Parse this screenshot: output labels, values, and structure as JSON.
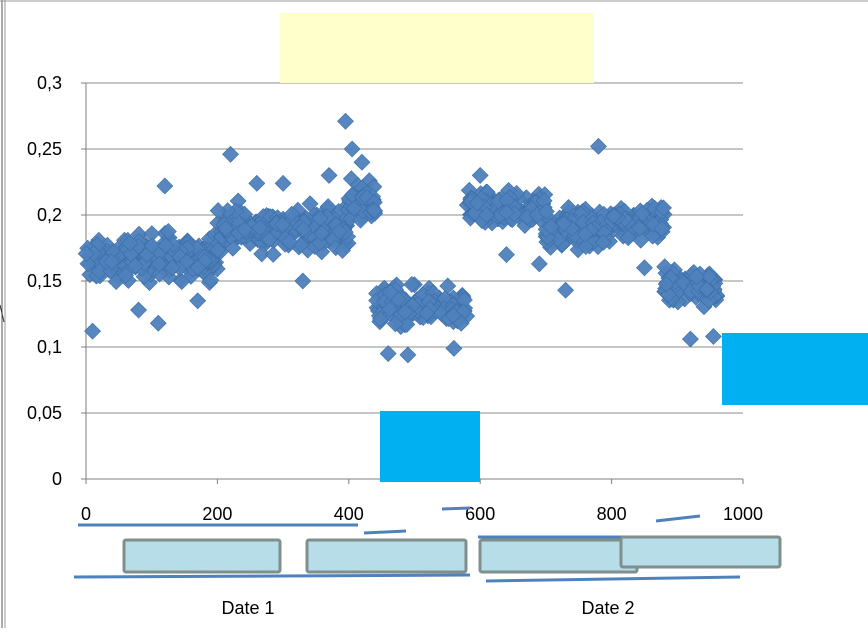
{
  "chart_data": {
    "type": "scatter",
    "title": "",
    "xlabel": "",
    "ylabel": "",
    "xlim": [
      0,
      1000
    ],
    "ylim": [
      0,
      0.3
    ],
    "x_ticks": [
      "0",
      "200",
      "400",
      "600",
      "800",
      "1000"
    ],
    "y_ticks": [
      "0",
      "0,05",
      "0,1",
      "0,15",
      "0,2",
      "0,25",
      "0,3"
    ],
    "grid": "horizontal",
    "marker": "diamond",
    "marker_color": "#4F81BD",
    "segments": [
      {
        "x_start": 0,
        "x_end": 60,
        "y_center": 0.165,
        "y_spread": 0.025
      },
      {
        "x_start": 60,
        "x_end": 200,
        "y_center": 0.168,
        "y_spread": 0.03
      },
      {
        "x_start": 200,
        "x_end": 290,
        "y_center": 0.19,
        "y_spread": 0.028
      },
      {
        "x_start": 290,
        "x_end": 400,
        "y_center": 0.19,
        "y_spread": 0.03
      },
      {
        "x_start": 400,
        "x_end": 440,
        "y_center": 0.21,
        "y_spread": 0.03
      },
      {
        "x_start": 440,
        "x_end": 580,
        "y_center": 0.13,
        "y_spread": 0.025
      },
      {
        "x_start": 580,
        "x_end": 700,
        "y_center": 0.205,
        "y_spread": 0.02
      },
      {
        "x_start": 700,
        "x_end": 800,
        "y_center": 0.19,
        "y_spread": 0.025
      },
      {
        "x_start": 800,
        "x_end": 880,
        "y_center": 0.195,
        "y_spread": 0.025
      },
      {
        "x_start": 880,
        "x_end": 960,
        "y_center": 0.145,
        "y_spread": 0.025
      }
    ],
    "outliers": [
      [
        10,
        0.112
      ],
      [
        120,
        0.222
      ],
      [
        220,
        0.246
      ],
      [
        260,
        0.224
      ],
      [
        300,
        0.224
      ],
      [
        330,
        0.15
      ],
      [
        370,
        0.23
      ],
      [
        395,
        0.271
      ],
      [
        405,
        0.25
      ],
      [
        420,
        0.24
      ],
      [
        460,
        0.095
      ],
      [
        490,
        0.094
      ],
      [
        560,
        0.099
      ],
      [
        600,
        0.23
      ],
      [
        610,
        0.2
      ],
      [
        690,
        0.163
      ],
      [
        730,
        0.143
      ],
      [
        780,
        0.252
      ],
      [
        920,
        0.106
      ],
      [
        955,
        0.108
      ],
      [
        110,
        0.118
      ],
      [
        170,
        0.135
      ],
      [
        80,
        0.128
      ],
      [
        640,
        0.17
      ],
      [
        850,
        0.16
      ]
    ],
    "category_labels": [
      "Date 1",
      "Date 2"
    ]
  },
  "colors": {
    "overlay_yellow": "#FFFFCC",
    "overlay_blue": "#00B0F0",
    "timeline_line": "#4F81BD",
    "timeline_box_fill": "#B7DEE8",
    "timeline_box_border": "#7F8F8C",
    "gridline": "#8C8C8C"
  }
}
